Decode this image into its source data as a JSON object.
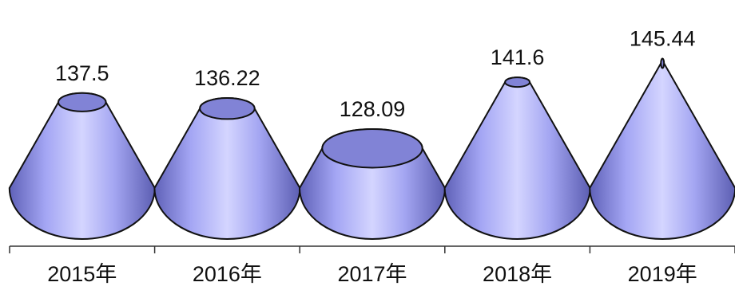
{
  "chart_data": {
    "type": "bar",
    "bar_shape": "cone",
    "categories": [
      "2015年",
      "2016年",
      "2017年",
      "2018年",
      "2019年"
    ],
    "values": [
      137.5,
      136.22,
      128.09,
      141.6,
      145.44
    ],
    "value_labels": [
      "137.5",
      "136.22",
      "128.09",
      "141.6",
      "145.44"
    ],
    "title": "",
    "xlabel": "",
    "ylabel": "",
    "ylim": [
      120,
      146
    ],
    "grid": false,
    "legend": "none"
  },
  "colors": {
    "cone_light": "#cfd0ff",
    "cone_mid": "#9c9ef0",
    "cone_dark": "#5456a8",
    "top_fill": "#8183d6",
    "outline": "#111111",
    "axis": "#333333",
    "text": "#111111"
  }
}
